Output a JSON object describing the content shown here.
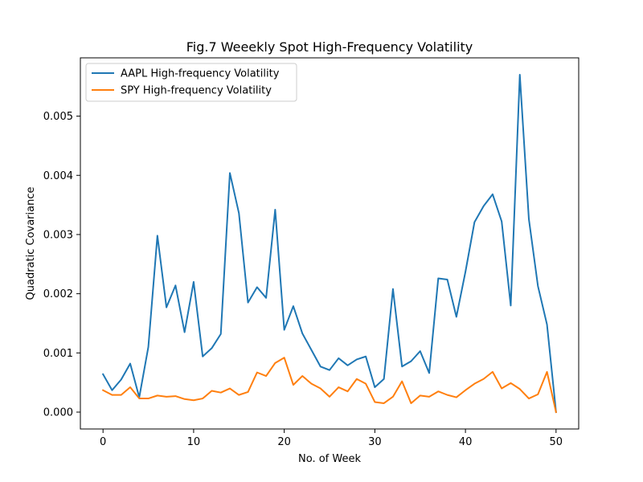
{
  "chart_data": {
    "type": "line",
    "title": "Fig.7 Weeekly Spot High-Frequency Volatility",
    "xlabel": "No. of Week",
    "ylabel": "Quadratic Covariance",
    "xlim": [
      -2.5,
      52.5
    ],
    "ylim": [
      -0.000285,
      0.005985
    ],
    "xticks": [
      0,
      10,
      20,
      30,
      40,
      50
    ],
    "xtick_labels": [
      "0",
      "10",
      "20",
      "30",
      "40",
      "50"
    ],
    "yticks": [
      0.0,
      0.001,
      0.002,
      0.003,
      0.004,
      0.005
    ],
    "ytick_labels": [
      "0.000",
      "0.001",
      "0.002",
      "0.003",
      "0.004",
      "0.005"
    ],
    "grid": false,
    "legend_position": "top-left",
    "x": [
      0,
      1,
      2,
      3,
      4,
      5,
      6,
      7,
      8,
      9,
      10,
      11,
      12,
      13,
      14,
      15,
      16,
      17,
      18,
      19,
      20,
      21,
      22,
      23,
      24,
      25,
      26,
      27,
      28,
      29,
      30,
      31,
      32,
      33,
      34,
      35,
      36,
      37,
      38,
      39,
      40,
      41,
      42,
      43,
      44,
      45,
      46,
      47,
      48,
      49,
      50
    ],
    "series": [
      {
        "name": "AAPL High-frequency Volatility",
        "color": "#1f77b4",
        "values": [
          0.00064,
          0.00037,
          0.00055,
          0.00082,
          0.00025,
          0.0011,
          0.00298,
          0.00177,
          0.00214,
          0.00135,
          0.0022,
          0.00094,
          0.00108,
          0.00132,
          0.00404,
          0.00336,
          0.00185,
          0.00211,
          0.00193,
          0.00342,
          0.00139,
          0.00179,
          0.00133,
          0.00105,
          0.00077,
          0.00071,
          0.00091,
          0.00079,
          0.00089,
          0.00094,
          0.00042,
          0.00056,
          0.00208,
          0.00077,
          0.00086,
          0.00103,
          0.00066,
          0.00226,
          0.00224,
          0.00161,
          0.00237,
          0.00321,
          0.00348,
          0.00368,
          0.00322,
          0.0018,
          0.0057,
          0.00326,
          0.00213,
          0.00148,
          0.0
        ]
      },
      {
        "name": "SPY High-frequency Volatility",
        "color": "#ff7f0e",
        "values": [
          0.00037,
          0.00029,
          0.00029,
          0.00042,
          0.00023,
          0.00023,
          0.00028,
          0.00026,
          0.00027,
          0.00022,
          0.0002,
          0.00023,
          0.00036,
          0.00033,
          0.0004,
          0.00029,
          0.00034,
          0.00067,
          0.00061,
          0.00083,
          0.00092,
          0.00046,
          0.00061,
          0.00048,
          0.0004,
          0.00026,
          0.00042,
          0.00035,
          0.00056,
          0.00048,
          0.00017,
          0.00015,
          0.00026,
          0.00052,
          0.00015,
          0.00028,
          0.00026,
          0.00035,
          0.00029,
          0.00025,
          0.00037,
          0.00048,
          0.00056,
          0.00068,
          0.0004,
          0.00049,
          0.00039,
          0.00023,
          0.0003,
          0.00068,
          0.0
        ]
      }
    ]
  }
}
